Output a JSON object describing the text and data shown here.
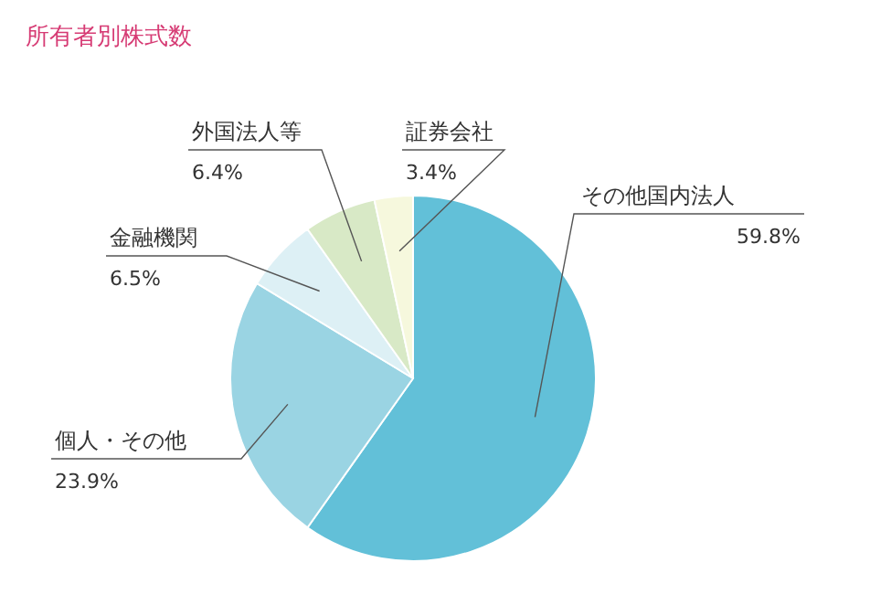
{
  "chart_data": {
    "type": "pie",
    "title": "所有者別株式数",
    "categories": [
      "その他国内法人",
      "個人・その他",
      "金融機関",
      "外国法人等",
      "証券会社"
    ],
    "values": [
      59.8,
      23.9,
      6.5,
      6.4,
      3.4
    ],
    "value_labels": [
      "59.8%",
      "23.9%",
      "6.5%",
      "6.4%",
      "3.4%"
    ],
    "colors": [
      "#62c0d8",
      "#9ad4e3",
      "#ddf0f5",
      "#d8e9c6",
      "#f6f8dd"
    ],
    "legend": false
  }
}
